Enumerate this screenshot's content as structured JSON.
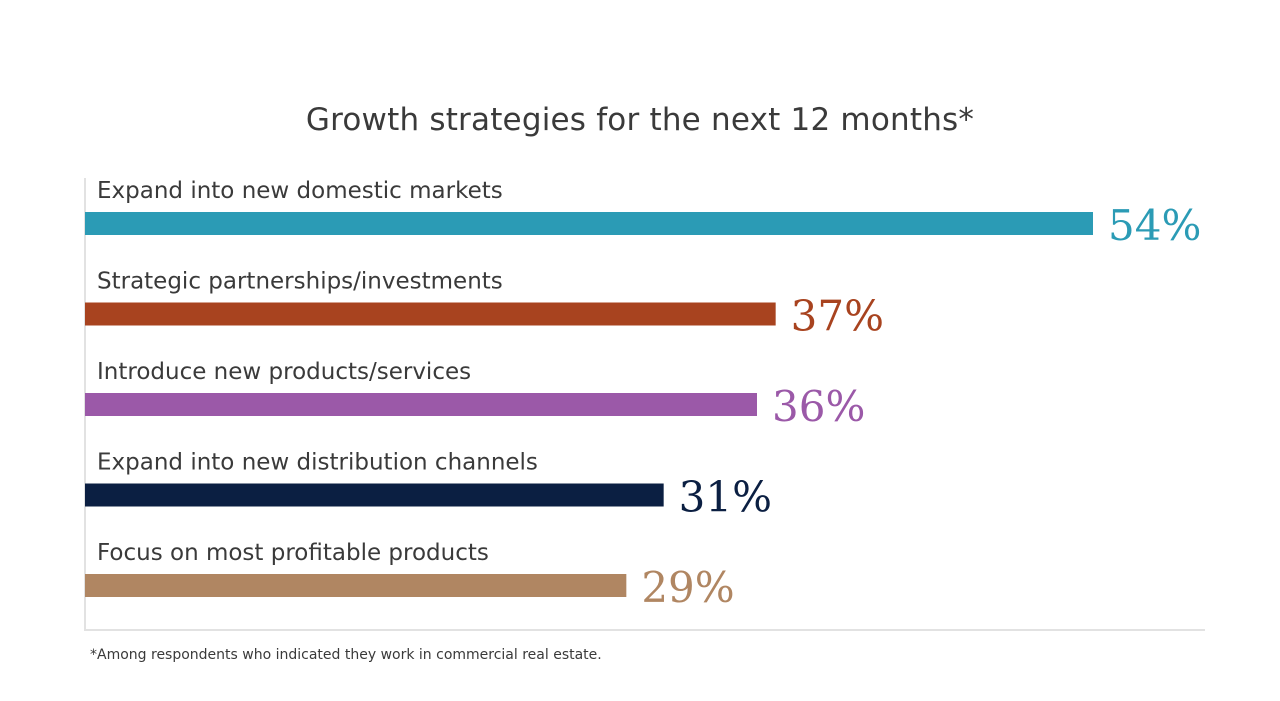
{
  "chart_data": {
    "type": "bar",
    "orientation": "horizontal",
    "title": "Growth strategies for the next 12 months*",
    "categories": [
      "Expand into new domestic markets",
      "Strategic partnerships/investments",
      "Introduce new products/services",
      "Expand into new distribution channels",
      "Focus on most profitable products"
    ],
    "values": [
      54,
      37,
      36,
      31,
      29
    ],
    "value_labels": [
      "54%",
      "37%",
      "36%",
      "31%",
      "29%"
    ],
    "colors": [
      "#2b9bb5",
      "#a8431f",
      "#9b59a8",
      "#0b1f42",
      "#b08662"
    ],
    "unit": "%",
    "xlim": [
      0,
      54
    ],
    "grid": false,
    "legend": "none",
    "footnote": "*Among respondents who indicated they work in commercial real estate."
  }
}
